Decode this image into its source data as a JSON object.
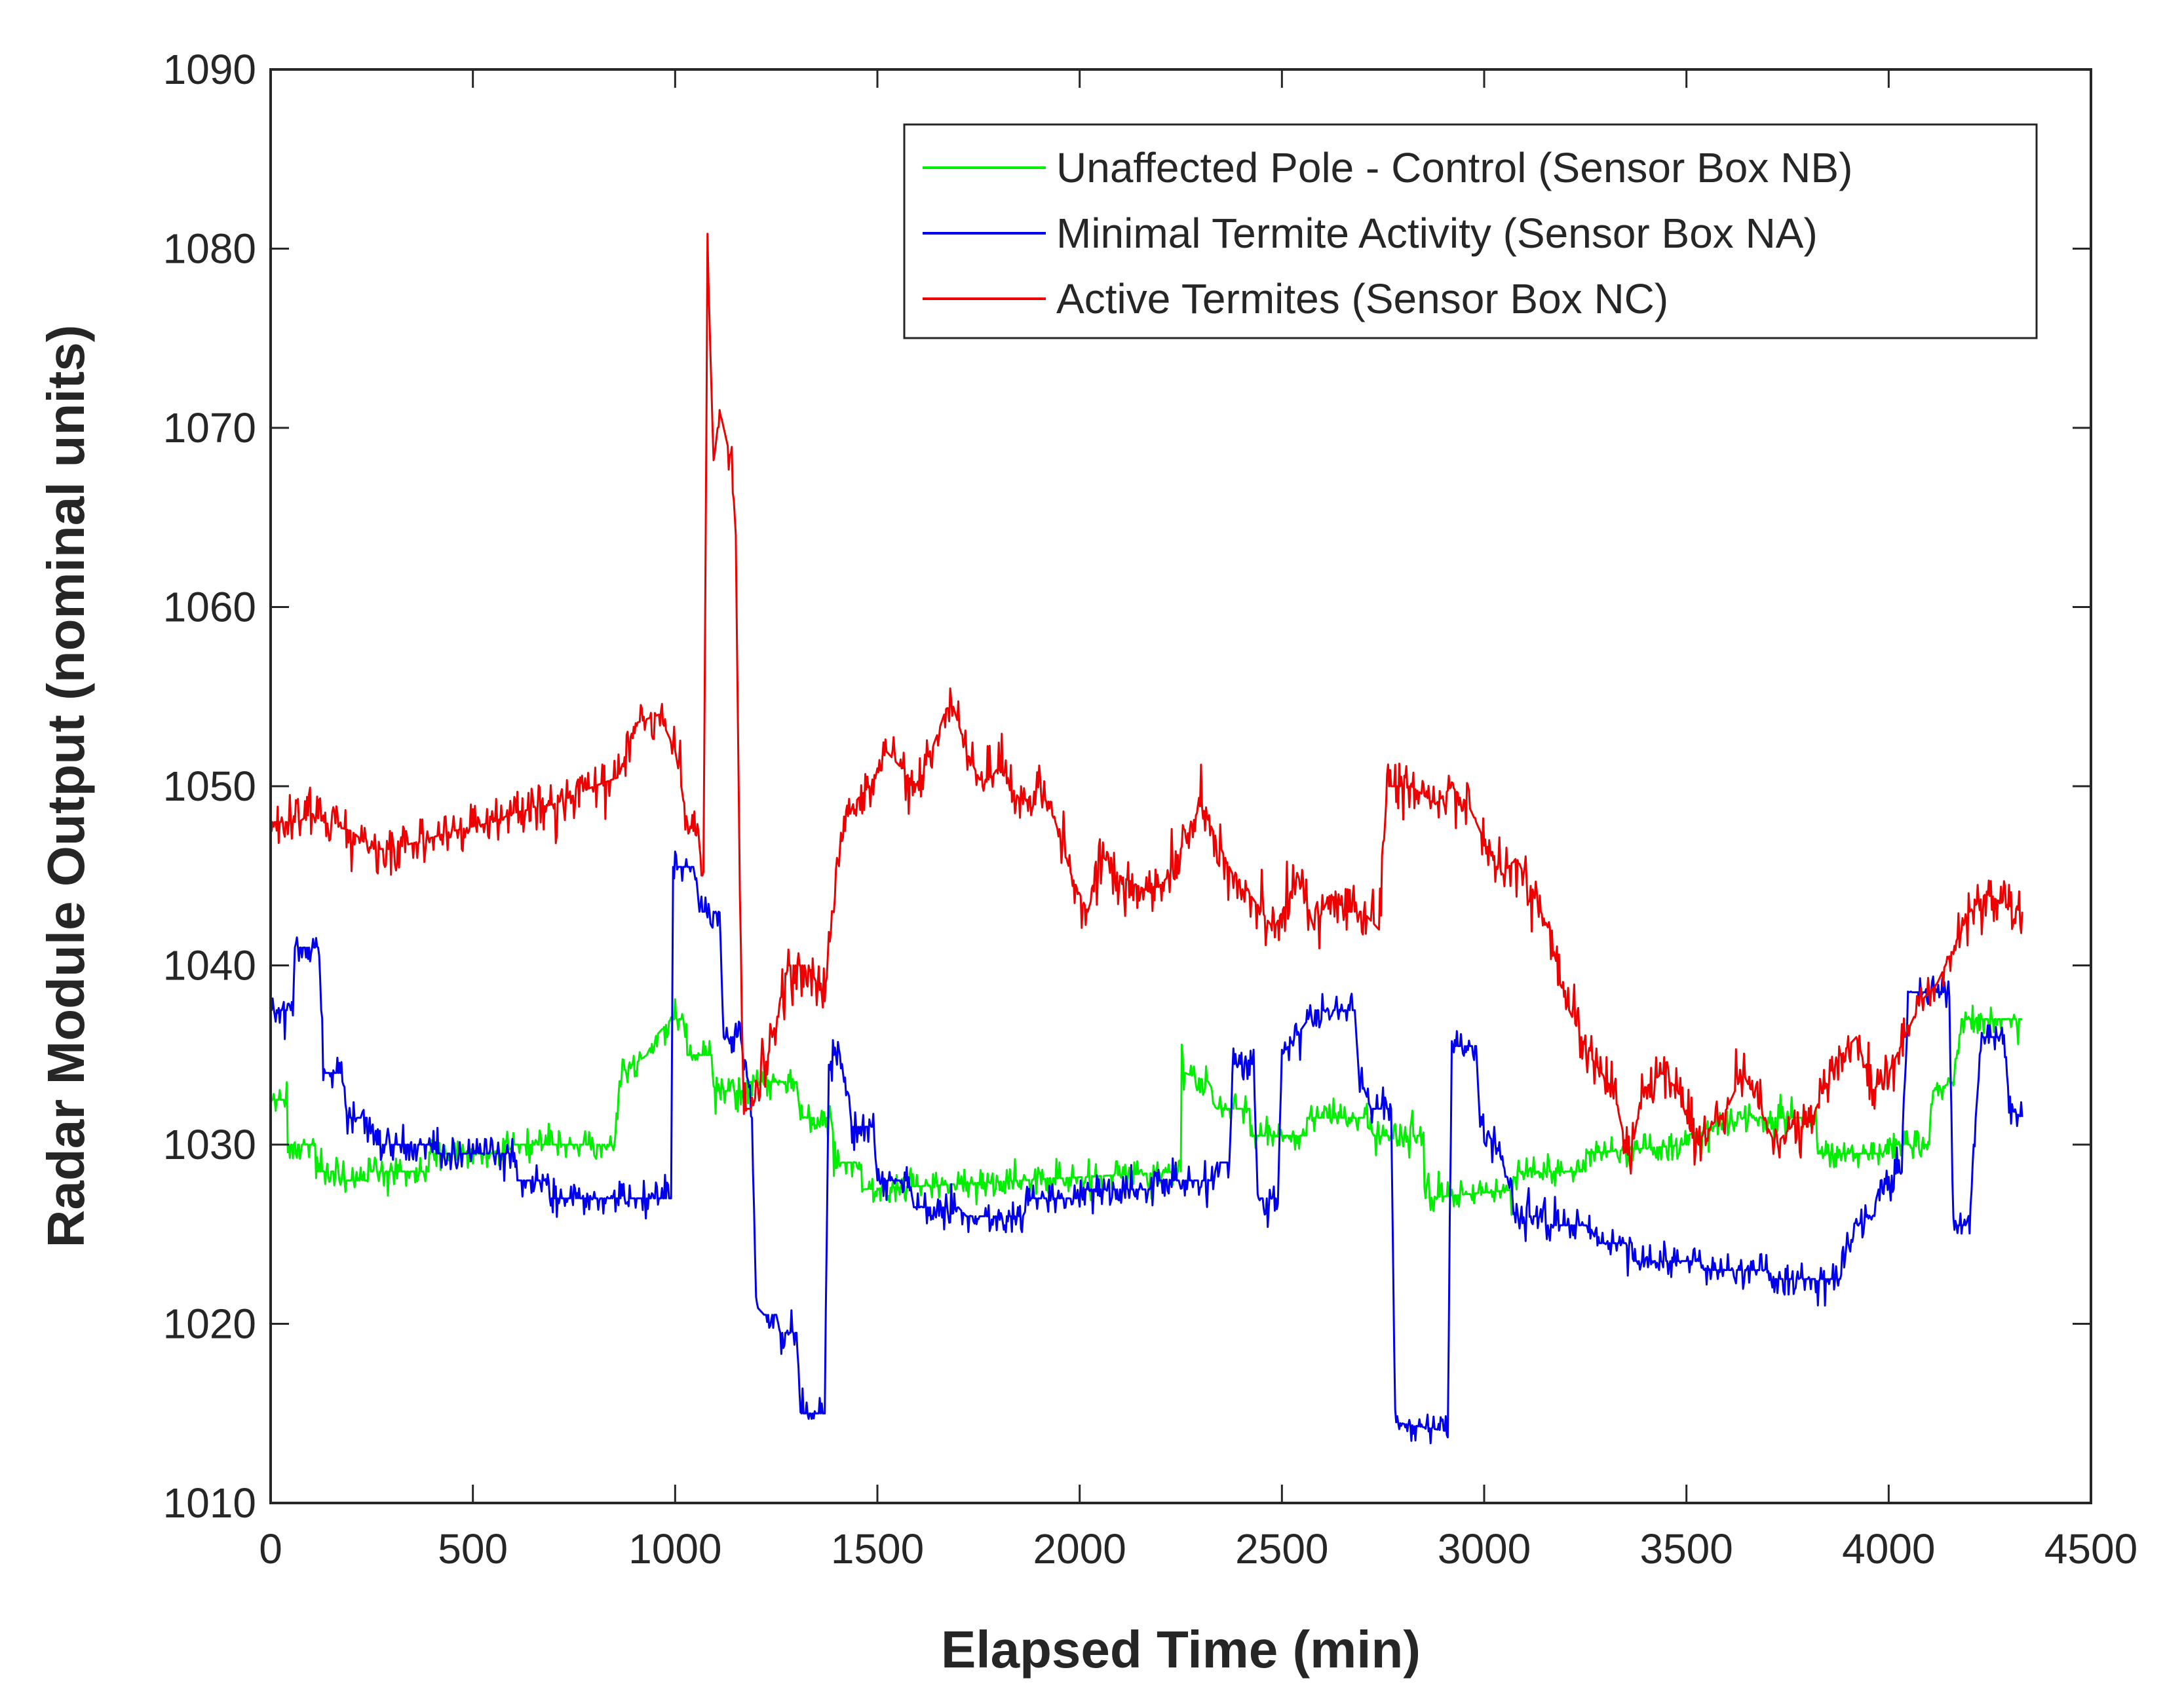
{
  "chart_data": {
    "type": "line",
    "title": "",
    "xlabel": "Elapsed Time (min)",
    "ylabel": "Radar Module Output (nominal units)",
    "xlim": [
      0,
      4500
    ],
    "ylim": [
      1010,
      1090
    ],
    "xticks": [
      0,
      500,
      1000,
      1500,
      2000,
      2500,
      3000,
      3500,
      4000,
      4500
    ],
    "yticks": [
      1010,
      1020,
      1030,
      1040,
      1050,
      1060,
      1070,
      1080,
      1090
    ],
    "grid": false,
    "legend_position": "top-right",
    "series": [
      {
        "name": "Unaffected Pole - Control (Sensor Box NB)",
        "color": "#00ee00",
        "noise": 0.8,
        "points": [
          [
            0,
            1032.5
          ],
          [
            40,
            1032.5
          ],
          [
            40,
            1030
          ],
          [
            110,
            1030
          ],
          [
            110,
            1028.5
          ],
          [
            180,
            1028.5
          ],
          [
            180,
            1028
          ],
          [
            240,
            1028
          ],
          [
            240,
            1028.5
          ],
          [
            390,
            1028.5
          ],
          [
            390,
            1029.5
          ],
          [
            580,
            1029.5
          ],
          [
            580,
            1030
          ],
          [
            850,
            1030
          ],
          [
            850,
            1031
          ],
          [
            870,
            1034
          ],
          [
            930,
            1035
          ],
          [
            950,
            1036
          ],
          [
            990,
            1037
          ],
          [
            1020,
            1037
          ],
          [
            1030,
            1035
          ],
          [
            1090,
            1035
          ],
          [
            1100,
            1033
          ],
          [
            1180,
            1033
          ],
          [
            1180,
            1033.5
          ],
          [
            1300,
            1033.5
          ],
          [
            1310,
            1031.5
          ],
          [
            1390,
            1031.5
          ],
          [
            1390,
            1029
          ],
          [
            1460,
            1029
          ],
          [
            1460,
            1027.5
          ],
          [
            2250,
            1028.5
          ],
          [
            2250,
            1036
          ],
          [
            2260,
            1034
          ],
          [
            2320,
            1033.5
          ],
          [
            2340,
            1032
          ],
          [
            2420,
            1032
          ],
          [
            2420,
            1030.5
          ],
          [
            2560,
            1030.5
          ],
          [
            2560,
            1031.5
          ],
          [
            2720,
            1031.5
          ],
          [
            2720,
            1030.5
          ],
          [
            2850,
            1030.5
          ],
          [
            2850,
            1027
          ],
          [
            3080,
            1027.5
          ],
          [
            3080,
            1028.5
          ],
          [
            3250,
            1028.5
          ],
          [
            3250,
            1029.5
          ],
          [
            3500,
            1030
          ],
          [
            3500,
            1030.5
          ],
          [
            3630,
            1031.5
          ],
          [
            3820,
            1031.5
          ],
          [
            3820,
            1029.5
          ],
          [
            4000,
            1029.5
          ],
          [
            4000,
            1030
          ],
          [
            4100,
            1030
          ],
          [
            4110,
            1033
          ],
          [
            4160,
            1033.5
          ],
          [
            4180,
            1037
          ],
          [
            4330,
            1037
          ]
        ]
      },
      {
        "name": "Minimal Termite Activity (Sensor Box NA)",
        "color": "#0000ee",
        "noise": 0.9,
        "points": [
          [
            0,
            1037.5
          ],
          [
            55,
            1037.5
          ],
          [
            60,
            1041
          ],
          [
            120,
            1041
          ],
          [
            130,
            1034
          ],
          [
            175,
            1034
          ],
          [
            180,
            1033
          ],
          [
            190,
            1031.5
          ],
          [
            250,
            1031.5
          ],
          [
            260,
            1030
          ],
          [
            400,
            1030
          ],
          [
            410,
            1029.5
          ],
          [
            600,
            1029.5
          ],
          [
            610,
            1028
          ],
          [
            680,
            1028
          ],
          [
            690,
            1027
          ],
          [
            990,
            1027
          ],
          [
            995,
            1045.5
          ],
          [
            1050,
            1045.5
          ],
          [
            1060,
            1043
          ],
          [
            1110,
            1043
          ],
          [
            1120,
            1036
          ],
          [
            1160,
            1036
          ],
          [
            1170,
            1035
          ],
          [
            1190,
            1032
          ],
          [
            1200,
            1021
          ],
          [
            1220,
            1020.5
          ],
          [
            1250,
            1020.5
          ],
          [
            1260,
            1019.5
          ],
          [
            1300,
            1019.5
          ],
          [
            1310,
            1015
          ],
          [
            1370,
            1015
          ],
          [
            1380,
            1035
          ],
          [
            1410,
            1035
          ],
          [
            1420,
            1033
          ],
          [
            1440,
            1031
          ],
          [
            1490,
            1031
          ],
          [
            1500,
            1028
          ],
          [
            1580,
            1028
          ],
          [
            1590,
            1026.5
          ],
          [
            1700,
            1026.5
          ],
          [
            1720,
            1026
          ],
          [
            1860,
            1026
          ],
          [
            1880,
            1027
          ],
          [
            2000,
            1027
          ],
          [
            2010,
            1027.5
          ],
          [
            2180,
            1027.5
          ],
          [
            2190,
            1028
          ],
          [
            2330,
            1028
          ],
          [
            2340,
            1029
          ],
          [
            2370,
            1029
          ],
          [
            2380,
            1034.5
          ],
          [
            2430,
            1034.5
          ],
          [
            2440,
            1027
          ],
          [
            2490,
            1027
          ],
          [
            2500,
            1035
          ],
          [
            2550,
            1036.5
          ],
          [
            2580,
            1037.5
          ],
          [
            2680,
            1037.5
          ],
          [
            2690,
            1034
          ],
          [
            2720,
            1032
          ],
          [
            2770,
            1032
          ],
          [
            2780,
            1014.5
          ],
          [
            2910,
            1014
          ],
          [
            2920,
            1035.5
          ],
          [
            2980,
            1035.5
          ],
          [
            2990,
            1031
          ],
          [
            3030,
            1030
          ],
          [
            3060,
            1028
          ],
          [
            3080,
            1026
          ],
          [
            3130,
            1026
          ],
          [
            3150,
            1025.5
          ],
          [
            3260,
            1025.5
          ],
          [
            3280,
            1024.5
          ],
          [
            3350,
            1024.5
          ],
          [
            3370,
            1023.5
          ],
          [
            3530,
            1023.5
          ],
          [
            3540,
            1023
          ],
          [
            3700,
            1023
          ],
          [
            3720,
            1022.5
          ],
          [
            3880,
            1022.5
          ],
          [
            3890,
            1024
          ],
          [
            3920,
            1025.5
          ],
          [
            3960,
            1026
          ],
          [
            3980,
            1028
          ],
          [
            4030,
            1028.5
          ],
          [
            4050,
            1038.5
          ],
          [
            4150,
            1038.5
          ],
          [
            4160,
            1025.5
          ],
          [
            4200,
            1025.5
          ],
          [
            4210,
            1030
          ],
          [
            4230,
            1036
          ],
          [
            4280,
            1036
          ],
          [
            4290,
            1034.5
          ],
          [
            4300,
            1032
          ],
          [
            4330,
            1031.5
          ]
        ]
      },
      {
        "name": "Active Termites (Sensor Box NC)",
        "color": "#ee0000",
        "noise": 1.3,
        "points": [
          [
            0,
            1048
          ],
          [
            70,
            1048
          ],
          [
            100,
            1048.5
          ],
          [
            130,
            1048
          ],
          [
            200,
            1047.5
          ],
          [
            250,
            1046.5
          ],
          [
            300,
            1046.5
          ],
          [
            380,
            1047
          ],
          [
            450,
            1047.5
          ],
          [
            550,
            1048
          ],
          [
            600,
            1048.5
          ],
          [
            700,
            1049
          ],
          [
            800,
            1050
          ],
          [
            860,
            1050.5
          ],
          [
            900,
            1053.5
          ],
          [
            960,
            1054
          ],
          [
            1000,
            1052
          ],
          [
            1030,
            1048
          ],
          [
            1060,
            1047
          ],
          [
            1070,
            1044
          ],
          [
            1080,
            1080
          ],
          [
            1095,
            1068
          ],
          [
            1110,
            1071
          ],
          [
            1140,
            1068
          ],
          [
            1150,
            1064
          ],
          [
            1160,
            1044
          ],
          [
            1170,
            1032
          ],
          [
            1190,
            1032
          ],
          [
            1230,
            1035
          ],
          [
            1280,
            1040
          ],
          [
            1330,
            1040
          ],
          [
            1370,
            1038
          ],
          [
            1400,
            1046
          ],
          [
            1440,
            1049
          ],
          [
            1480,
            1050
          ],
          [
            1520,
            1052
          ],
          [
            1560,
            1051
          ],
          [
            1600,
            1050
          ],
          [
            1650,
            1053
          ],
          [
            1680,
            1055
          ],
          [
            1720,
            1052
          ],
          [
            1760,
            1050
          ],
          [
            1800,
            1051
          ],
          [
            1860,
            1049
          ],
          [
            1900,
            1050
          ],
          [
            1940,
            1048
          ],
          [
            1980,
            1045
          ],
          [
            2020,
            1043
          ],
          [
            2060,
            1046
          ],
          [
            2100,
            1045
          ],
          [
            2180,
            1044
          ],
          [
            2220,
            1045
          ],
          [
            2260,
            1047
          ],
          [
            2300,
            1049
          ],
          [
            2340,
            1047
          ],
          [
            2380,
            1045
          ],
          [
            2420,
            1044
          ],
          [
            2480,
            1042
          ],
          [
            2540,
            1045
          ],
          [
            2580,
            1042
          ],
          [
            2620,
            1044
          ],
          [
            2660,
            1043
          ],
          [
            2700,
            1043
          ],
          [
            2740,
            1042
          ],
          [
            2760,
            1050
          ],
          [
            2820,
            1050
          ],
          [
            2880,
            1049
          ],
          [
            2920,
            1050
          ],
          [
            2960,
            1049
          ],
          [
            3000,
            1047
          ],
          [
            3040,
            1045
          ],
          [
            3080,
            1046
          ],
          [
            3120,
            1044
          ],
          [
            3160,
            1042
          ],
          [
            3200,
            1038
          ],
          [
            3260,
            1035
          ],
          [
            3320,
            1033
          ],
          [
            3360,
            1029
          ],
          [
            3390,
            1033
          ],
          [
            3440,
            1034
          ],
          [
            3480,
            1033
          ],
          [
            3520,
            1030
          ],
          [
            3560,
            1031
          ],
          [
            3600,
            1032
          ],
          [
            3640,
            1034
          ],
          [
            3680,
            1032
          ],
          [
            3720,
            1030
          ],
          [
            3760,
            1031
          ],
          [
            3800,
            1031
          ],
          [
            3840,
            1033
          ],
          [
            3880,
            1035
          ],
          [
            3920,
            1036
          ],
          [
            3960,
            1033
          ],
          [
            4000,
            1034
          ],
          [
            4040,
            1036
          ],
          [
            4080,
            1038
          ],
          [
            4120,
            1039
          ],
          [
            4160,
            1041
          ],
          [
            4200,
            1043
          ],
          [
            4240,
            1044
          ],
          [
            4280,
            1043.5
          ],
          [
            4330,
            1043
          ]
        ]
      }
    ]
  }
}
